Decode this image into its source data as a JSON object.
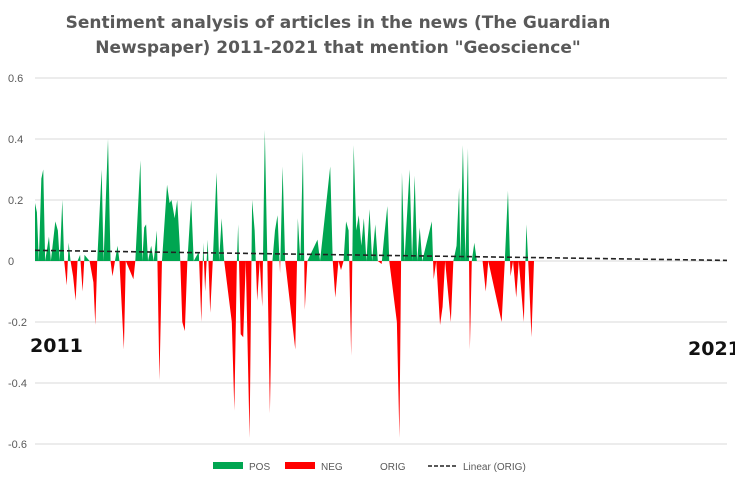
{
  "chart_data": {
    "type": "area",
    "title_lines": [
      "Sentiment analysis of articles in the news (The Guardian",
      "Newspaper) 2011-2021 that mention \"Geoscience\""
    ],
    "ylim": [
      -0.6,
      0.6
    ],
    "yticks": [
      "-0.6",
      "-0.4",
      "-0.2",
      "0",
      "0.2",
      "0.4",
      "0.6"
    ],
    "start_label": "2011",
    "end_label": "2021",
    "x_range": [
      2011,
      2021.9
    ],
    "colors": {
      "pos": "#00a651",
      "neg": "#ff0000",
      "trend": "#222222",
      "grid": "#d9d9d9"
    },
    "legend": [
      {
        "name": "POS",
        "kind": "patch",
        "color": "#00a651"
      },
      {
        "name": "NEG",
        "kind": "patch",
        "color": "#ff0000"
      },
      {
        "name": "ORIG",
        "kind": "none",
        "color": ""
      },
      {
        "name": "Linear (ORIG)",
        "kind": "dashed",
        "color": "#222222"
      }
    ],
    "trend": {
      "start": 0.035,
      "end": 0.002
    },
    "series": [
      {
        "x": 2011.0,
        "y": 0.19
      },
      {
        "x": 2011.03,
        "y": 0.16
      },
      {
        "x": 2011.06,
        "y": 0.0
      },
      {
        "x": 2011.1,
        "y": 0.27
      },
      {
        "x": 2011.13,
        "y": 0.3
      },
      {
        "x": 2011.16,
        "y": 0.0
      },
      {
        "x": 2011.22,
        "y": 0.08
      },
      {
        "x": 2011.25,
        "y": 0.0
      },
      {
        "x": 2011.32,
        "y": 0.13
      },
      {
        "x": 2011.36,
        "y": 0.1
      },
      {
        "x": 2011.39,
        "y": 0.0
      },
      {
        "x": 2011.43,
        "y": 0.2
      },
      {
        "x": 2011.46,
        "y": 0.0
      },
      {
        "x": 2011.5,
        "y": -0.08
      },
      {
        "x": 2011.53,
        "y": 0.06
      },
      {
        "x": 2011.56,
        "y": 0.0
      },
      {
        "x": 2011.6,
        "y": -0.05
      },
      {
        "x": 2011.64,
        "y": -0.13
      },
      {
        "x": 2011.67,
        "y": 0.0
      },
      {
        "x": 2011.71,
        "y": 0.02
      },
      {
        "x": 2011.75,
        "y": -0.1
      },
      {
        "x": 2011.78,
        "y": 0.02
      },
      {
        "x": 2011.82,
        "y": 0.01
      },
      {
        "x": 2011.86,
        "y": 0.0
      },
      {
        "x": 2011.92,
        "y": -0.07
      },
      {
        "x": 2011.95,
        "y": -0.21
      },
      {
        "x": 2011.98,
        "y": 0.0
      },
      {
        "x": 2012.05,
        "y": 0.3
      },
      {
        "x": 2012.08,
        "y": 0.0
      },
      {
        "x": 2012.15,
        "y": 0.4
      },
      {
        "x": 2012.19,
        "y": 0.0
      },
      {
        "x": 2012.22,
        "y": -0.05
      },
      {
        "x": 2012.26,
        "y": 0.0
      },
      {
        "x": 2012.3,
        "y": 0.05
      },
      {
        "x": 2012.33,
        "y": 0.0
      },
      {
        "x": 2012.4,
        "y": -0.29
      },
      {
        "x": 2012.43,
        "y": 0.0
      },
      {
        "x": 2012.55,
        "y": -0.06
      },
      {
        "x": 2012.58,
        "y": 0.0
      },
      {
        "x": 2012.66,
        "y": 0.33
      },
      {
        "x": 2012.69,
        "y": 0.0
      },
      {
        "x": 2012.72,
        "y": 0.11
      },
      {
        "x": 2012.75,
        "y": 0.12
      },
      {
        "x": 2012.78,
        "y": 0.0
      },
      {
        "x": 2012.83,
        "y": 0.05
      },
      {
        "x": 2012.87,
        "y": 0.0
      },
      {
        "x": 2012.92,
        "y": 0.1
      },
      {
        "x": 2012.96,
        "y": -0.39
      },
      {
        "x": 2013.0,
        "y": 0.0
      },
      {
        "x": 2013.08,
        "y": 0.25
      },
      {
        "x": 2013.12,
        "y": 0.19
      },
      {
        "x": 2013.15,
        "y": 0.2
      },
      {
        "x": 2013.2,
        "y": 0.14
      },
      {
        "x": 2013.24,
        "y": 0.2
      },
      {
        "x": 2013.28,
        "y": 0.05
      },
      {
        "x": 2013.32,
        "y": -0.2
      },
      {
        "x": 2013.36,
        "y": -0.23
      },
      {
        "x": 2013.4,
        "y": 0.0
      },
      {
        "x": 2013.46,
        "y": 0.2
      },
      {
        "x": 2013.5,
        "y": 0.0
      },
      {
        "x": 2013.58,
        "y": 0.03
      },
      {
        "x": 2013.62,
        "y": -0.2
      },
      {
        "x": 2013.65,
        "y": 0.06
      },
      {
        "x": 2013.68,
        "y": -0.1
      },
      {
        "x": 2013.72,
        "y": 0.07
      },
      {
        "x": 2013.76,
        "y": -0.17
      },
      {
        "x": 2013.8,
        "y": 0.0
      },
      {
        "x": 2013.86,
        "y": 0.29
      },
      {
        "x": 2013.9,
        "y": 0.0
      },
      {
        "x": 2013.94,
        "y": 0.14
      },
      {
        "x": 2013.98,
        "y": 0.0
      },
      {
        "x": 2014.1,
        "y": -0.2
      },
      {
        "x": 2014.14,
        "y": -0.49
      },
      {
        "x": 2014.18,
        "y": 0.0
      },
      {
        "x": 2014.2,
        "y": 0.12
      },
      {
        "x": 2014.24,
        "y": -0.24
      },
      {
        "x": 2014.28,
        "y": -0.25
      },
      {
        "x": 2014.32,
        "y": 0.0
      },
      {
        "x": 2014.38,
        "y": -0.58
      },
      {
        "x": 2014.42,
        "y": 0.2
      },
      {
        "x": 2014.46,
        "y": 0.1
      },
      {
        "x": 2014.5,
        "y": -0.13
      },
      {
        "x": 2014.54,
        "y": 0.0
      },
      {
        "x": 2014.58,
        "y": -0.15
      },
      {
        "x": 2014.62,
        "y": 0.43
      },
      {
        "x": 2014.66,
        "y": 0.0
      },
      {
        "x": 2014.7,
        "y": -0.5
      },
      {
        "x": 2014.74,
        "y": 0.0
      },
      {
        "x": 2014.78,
        "y": 0.1
      },
      {
        "x": 2014.82,
        "y": 0.15
      },
      {
        "x": 2014.86,
        "y": -0.04
      },
      {
        "x": 2014.9,
        "y": 0.31
      },
      {
        "x": 2014.94,
        "y": 0.0
      },
      {
        "x": 2015.1,
        "y": -0.29
      },
      {
        "x": 2015.14,
        "y": 0.14
      },
      {
        "x": 2015.18,
        "y": 0.0
      },
      {
        "x": 2015.22,
        "y": 0.36
      },
      {
        "x": 2015.25,
        "y": -0.16
      },
      {
        "x": 2015.29,
        "y": 0.0
      },
      {
        "x": 2015.45,
        "y": 0.07
      },
      {
        "x": 2015.49,
        "y": 0.0
      },
      {
        "x": 2015.65,
        "y": 0.31
      },
      {
        "x": 2015.69,
        "y": 0.0
      },
      {
        "x": 2015.73,
        "y": -0.12
      },
      {
        "x": 2015.78,
        "y": 0.0
      },
      {
        "x": 2015.82,
        "y": -0.03
      },
      {
        "x": 2015.86,
        "y": 0.0
      },
      {
        "x": 2015.9,
        "y": 0.13
      },
      {
        "x": 2015.94,
        "y": 0.1
      },
      {
        "x": 2015.98,
        "y": -0.31
      },
      {
        "x": 2016.02,
        "y": 0.38
      },
      {
        "x": 2016.06,
        "y": 0.1
      },
      {
        "x": 2016.1,
        "y": 0.15
      },
      {
        "x": 2016.14,
        "y": 0.05
      },
      {
        "x": 2016.18,
        "y": 0.14
      },
      {
        "x": 2016.22,
        "y": 0.0
      },
      {
        "x": 2016.27,
        "y": 0.17
      },
      {
        "x": 2016.31,
        "y": 0.0
      },
      {
        "x": 2016.36,
        "y": 0.12
      },
      {
        "x": 2016.4,
        "y": 0.0
      },
      {
        "x": 2016.46,
        "y": -0.01
      },
      {
        "x": 2016.5,
        "y": 0.08
      },
      {
        "x": 2016.55,
        "y": 0.18
      },
      {
        "x": 2016.58,
        "y": 0.0
      },
      {
        "x": 2016.7,
        "y": -0.2
      },
      {
        "x": 2016.74,
        "y": -0.58
      },
      {
        "x": 2016.78,
        "y": 0.29
      },
      {
        "x": 2016.82,
        "y": 0.0
      },
      {
        "x": 2016.9,
        "y": 0.3
      },
      {
        "x": 2016.94,
        "y": 0.0
      },
      {
        "x": 2016.98,
        "y": 0.28
      },
      {
        "x": 2017.02,
        "y": 0.0
      },
      {
        "x": 2017.06,
        "y": 0.11
      },
      {
        "x": 2017.1,
        "y": 0.0
      },
      {
        "x": 2017.25,
        "y": 0.13
      },
      {
        "x": 2017.28,
        "y": -0.06
      },
      {
        "x": 2017.32,
        "y": 0.0
      },
      {
        "x": 2017.38,
        "y": -0.21
      },
      {
        "x": 2017.42,
        "y": -0.15
      },
      {
        "x": 2017.46,
        "y": 0.0
      },
      {
        "x": 2017.55,
        "y": -0.2
      },
      {
        "x": 2017.59,
        "y": 0.0
      },
      {
        "x": 2017.64,
        "y": 0.05
      },
      {
        "x": 2017.68,
        "y": 0.24
      },
      {
        "x": 2017.7,
        "y": 0.0
      },
      {
        "x": 2017.74,
        "y": 0.38
      },
      {
        "x": 2017.78,
        "y": 0.0
      },
      {
        "x": 2017.82,
        "y": 0.37
      },
      {
        "x": 2017.85,
        "y": -0.29
      },
      {
        "x": 2017.88,
        "y": 0.0
      },
      {
        "x": 2017.92,
        "y": 0.06
      },
      {
        "x": 2017.96,
        "y": 0.0
      },
      {
        "x": 2018.05,
        "y": 0.0
      },
      {
        "x": 2018.1,
        "y": -0.1
      },
      {
        "x": 2018.14,
        "y": 0.0
      },
      {
        "x": 2018.35,
        "y": -0.2
      },
      {
        "x": 2018.4,
        "y": 0.0
      },
      {
        "x": 2018.45,
        "y": 0.23
      },
      {
        "x": 2018.49,
        "y": -0.05
      },
      {
        "x": 2018.53,
        "y": 0.0
      },
      {
        "x": 2018.58,
        "y": -0.12
      },
      {
        "x": 2018.62,
        "y": 0.0
      },
      {
        "x": 2018.7,
        "y": -0.2
      },
      {
        "x": 2018.74,
        "y": 0.12
      },
      {
        "x": 2018.78,
        "y": -0.05
      },
      {
        "x": 2018.82,
        "y": -0.25
      },
      {
        "x": 2018.86,
        "y": 0.0
      }
    ]
  }
}
